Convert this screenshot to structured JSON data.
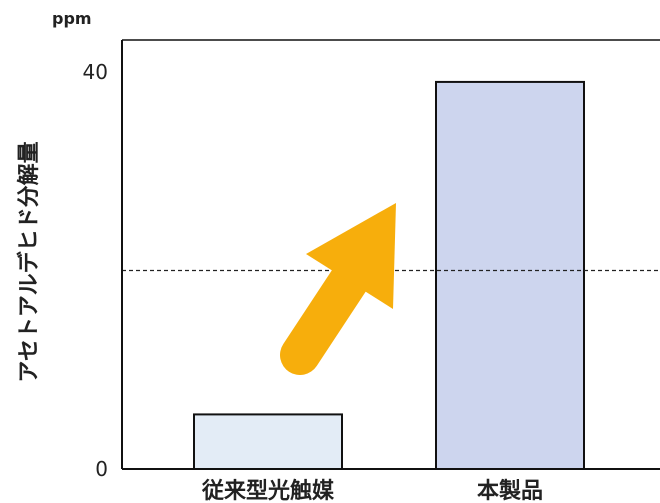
{
  "chart_data": {
    "type": "bar",
    "unit": "ppm",
    "ylabel": "アセトアルデヒド分解量",
    "categories": [
      "従来型光触媒",
      "本製品"
    ],
    "values": [
      5.5,
      39
    ],
    "ylim": [
      0,
      40
    ],
    "yticks": [
      "0",
      "40"
    ],
    "reference_line": 20,
    "bar_colors": [
      "#e3ecf6",
      "#cdd5ee"
    ],
    "bar_stroke": "#111111",
    "arrow_color": "#f7ae0c",
    "grid": false
  }
}
